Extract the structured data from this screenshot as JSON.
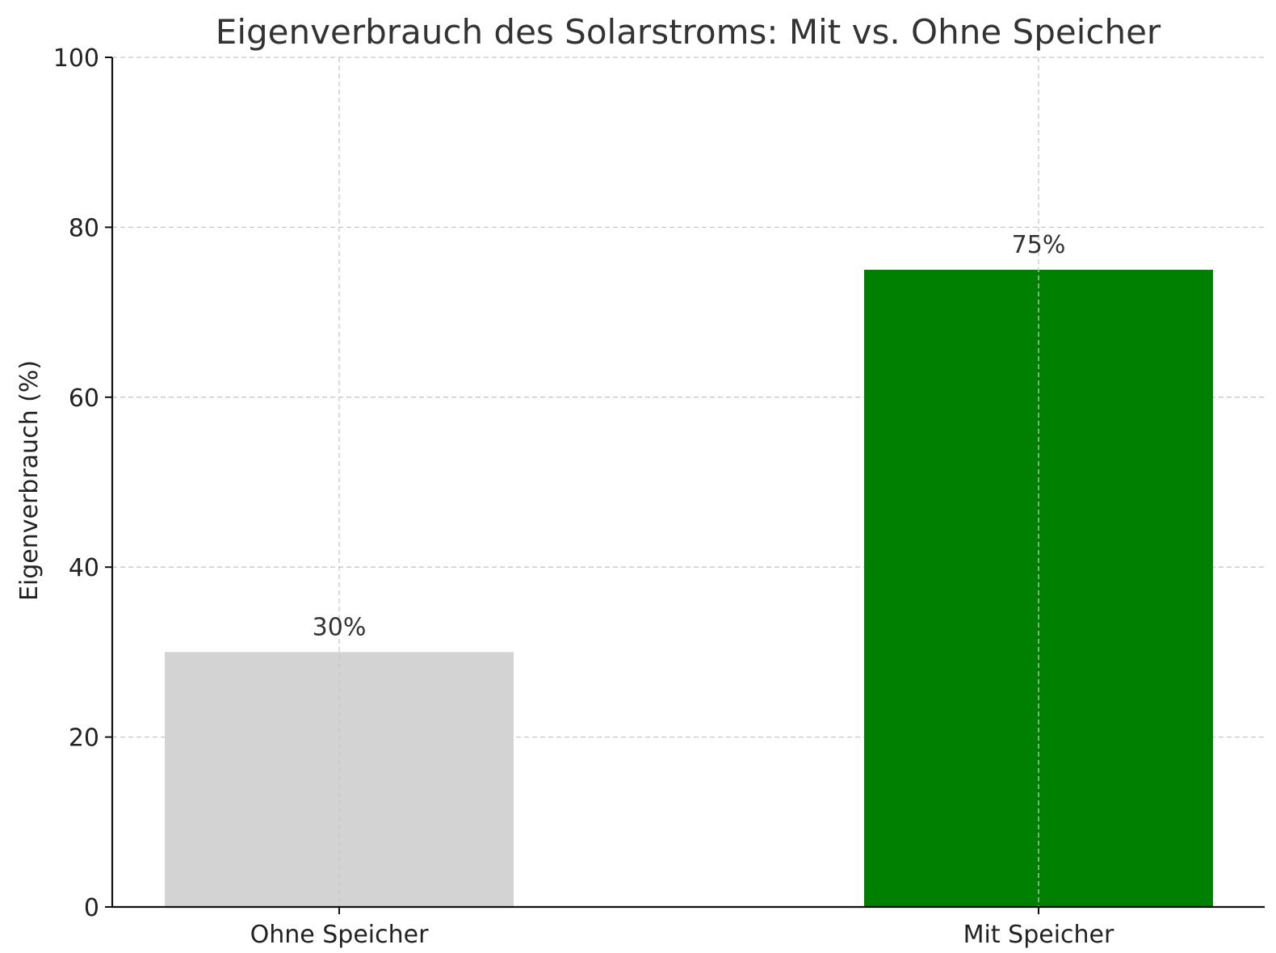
{
  "chart_data": {
    "type": "bar",
    "title": "Eigenverbrauch des Solarstroms: Mit vs. Ohne Speicher",
    "xlabel": "",
    "ylabel": "Eigenverbrauch (%)",
    "categories": [
      "Ohne Speicher",
      "Mit Speicher"
    ],
    "values": [
      30,
      75
    ],
    "data_labels": [
      "30%",
      "75%"
    ],
    "colors": [
      "#d3d3d3",
      "#008000"
    ],
    "ylim": [
      0,
      100
    ],
    "yticks": [
      0,
      20,
      40,
      60,
      80,
      100
    ],
    "ytick_labels": [
      "0",
      "20",
      "40",
      "60",
      "80",
      "100"
    ],
    "grid": true,
    "legend": "none"
  }
}
